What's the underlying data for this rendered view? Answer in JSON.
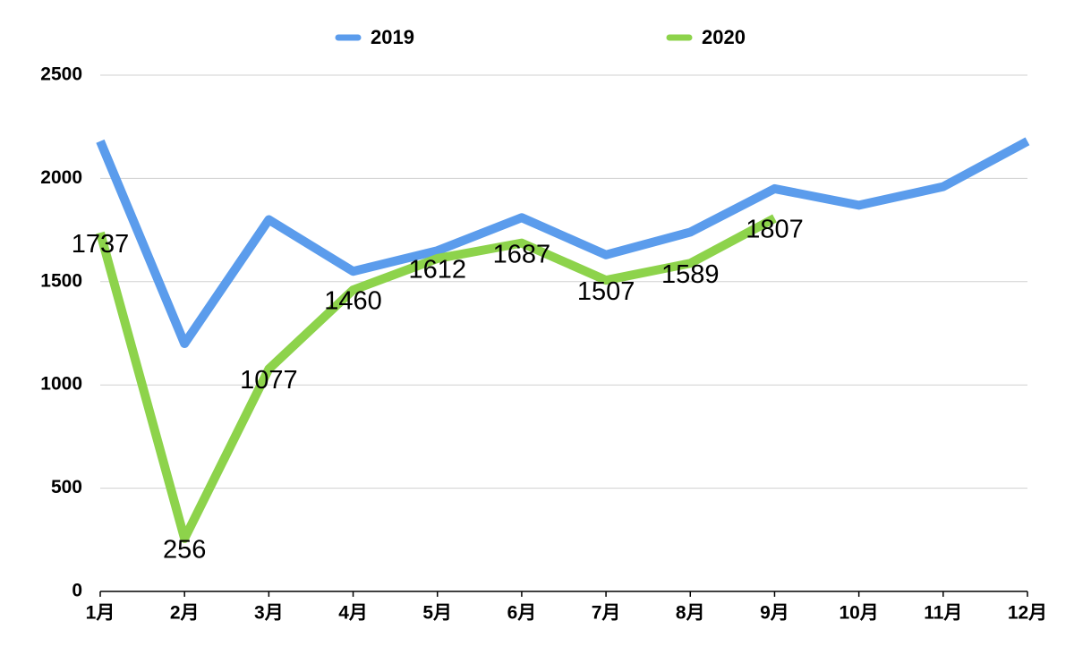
{
  "chart_data": {
    "type": "line",
    "categories": [
      "1月",
      "2月",
      "3月",
      "4月",
      "5月",
      "6月",
      "7月",
      "8月",
      "9月",
      "10月",
      "11月",
      "12月"
    ],
    "series": [
      {
        "name": "2019",
        "color": "#5b9cec",
        "values": [
          2180,
          1200,
          1800,
          1550,
          1650,
          1810,
          1630,
          1740,
          1950,
          1870,
          1960,
          2180
        ]
      },
      {
        "name": "2020",
        "color": "#8dd34b",
        "values": [
          1737,
          256,
          1077,
          1460,
          1612,
          1687,
          1507,
          1589,
          1807,
          null,
          null,
          null
        ]
      }
    ],
    "data_labels_series": "2020",
    "ylim": [
      0,
      2500
    ],
    "yticks": [
      0,
      500,
      1000,
      1500,
      2000,
      2500
    ],
    "grid": true,
    "legend": "top"
  }
}
